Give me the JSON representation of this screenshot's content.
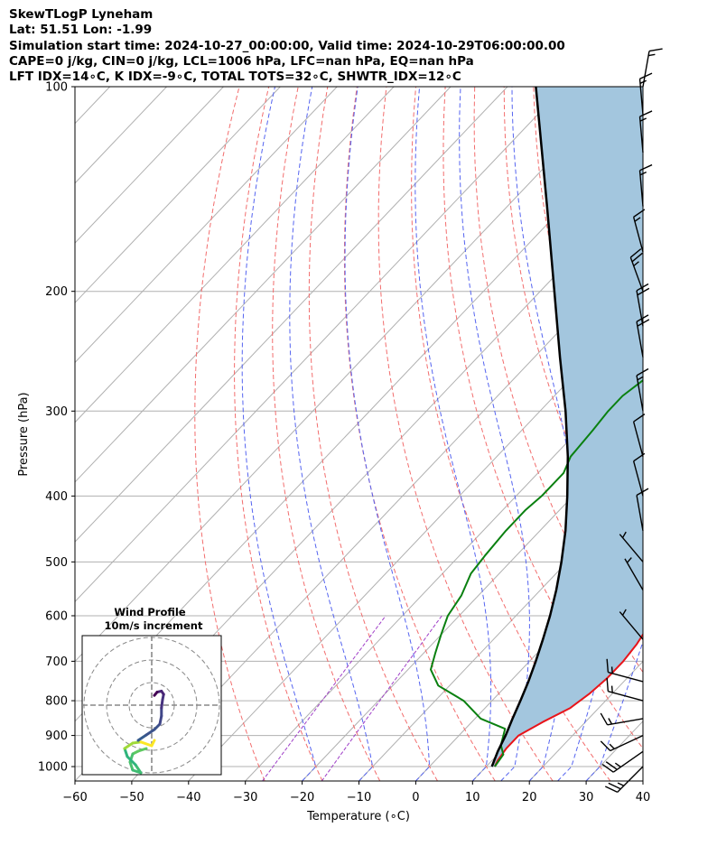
{
  "header": {
    "line1": "SkewTLogP Lyneham",
    "line2": "Lat: 51.51   Lon: -1.99",
    "line3": "Simulation start time: 2024-10-27_00:00:00, Valid time: 2024-10-29T06:00:00.00",
    "line4": "CAPE=0 j/kg, CIN=0 j/kg, LCL=1006 hPa, LFC=nan hPa, EQ=nan hPa",
    "line5": "LFT IDX=14∘C, K IDX=-9∘C, TOTAL TOTS=32∘C, SHWTR_IDX=12∘C"
  },
  "hodograph": {
    "title": "Wind Profile",
    "subtitle": "10m/s increment"
  },
  "colors": {
    "temperature": "#e8141a",
    "dewpoint": "#0a8010",
    "parcel": "#000000",
    "cape_fill": "#a3c6de",
    "dry_adiabat": "#f26d6d",
    "moist_adiabat": "#5564f0",
    "mixing_ratio": "#a040c8",
    "isotherm": "#b0b0b0"
  },
  "chart_data": {
    "type": "line",
    "subtype": "skew-T log-P",
    "xlabel": "Temperature (∘C)",
    "ylabel": "Pressure (hPa)",
    "xlim": [
      -60,
      40
    ],
    "ylim": [
      1050,
      100
    ],
    "yscale": "log",
    "xticks": [
      "−60",
      "−50",
      "−40",
      "−30",
      "−20",
      "−10",
      "0",
      "10",
      "20",
      "30",
      "40"
    ],
    "yticks": [
      "1000",
      "900",
      "800",
      "700",
      "600",
      "500",
      "400",
      "300",
      "200",
      "100"
    ],
    "grid": true,
    "series": [
      {
        "key": "temperature",
        "points": [
          [
            1000,
            11.5
          ],
          [
            980,
            11
          ],
          [
            940,
            10.5
          ],
          [
            900,
            10.5
          ],
          [
            860,
            12.5
          ],
          [
            820,
            15
          ],
          [
            780,
            16
          ],
          [
            740,
            16.5
          ],
          [
            700,
            16.5
          ],
          [
            660,
            16
          ],
          [
            620,
            15
          ],
          [
            580,
            13
          ],
          [
            540,
            11
          ],
          [
            500,
            8.5
          ],
          [
            460,
            6.5
          ],
          [
            420,
            4.5
          ],
          [
            380,
            2
          ],
          [
            350,
            -1
          ],
          [
            320,
            -4
          ],
          [
            290,
            -7
          ],
          [
            270,
            -10
          ],
          [
            250,
            -12
          ],
          [
            230,
            -12.5
          ],
          [
            210,
            -13
          ],
          [
            190,
            -12.5
          ],
          [
            170,
            -11.5
          ],
          [
            150,
            -10
          ],
          [
            140,
            -8.5
          ],
          [
            130,
            -6.5
          ],
          [
            115,
            -4
          ],
          [
            108,
            -2
          ],
          [
            100,
            0
          ]
        ]
      },
      {
        "key": "dewpoint",
        "points": [
          [
            1000,
            11.5
          ],
          [
            960,
            11
          ],
          [
            930,
            9
          ],
          [
            880,
            7
          ],
          [
            850,
            1
          ],
          [
            800,
            -5
          ],
          [
            760,
            -12
          ],
          [
            720,
            -16
          ],
          [
            680,
            -18
          ],
          [
            640,
            -20
          ],
          [
            600,
            -22
          ],
          [
            560,
            -23
          ],
          [
            520,
            -25
          ],
          [
            490,
            -25.5
          ],
          [
            450,
            -26
          ],
          [
            420,
            -26
          ],
          [
            400,
            -25.5
          ],
          [
            370,
            -25.5
          ],
          [
            350,
            -27
          ],
          [
            320,
            -27.5
          ],
          [
            300,
            -28
          ],
          [
            285,
            -28
          ],
          [
            270,
            -27
          ],
          [
            255,
            -29
          ],
          [
            240,
            -31.5
          ],
          [
            225,
            -32
          ],
          [
            210,
            -33
          ],
          [
            195,
            -34
          ],
          [
            185,
            -36
          ],
          [
            175,
            -38
          ],
          [
            165,
            -39.5
          ],
          [
            155,
            -41
          ],
          [
            140,
            -40.5
          ],
          [
            130,
            -40
          ],
          [
            120,
            -39.5
          ],
          [
            110,
            -38
          ],
          [
            100,
            -36
          ]
        ]
      },
      {
        "key": "parcel",
        "points": [
          [
            1000,
            11.0
          ],
          [
            950,
            9.5
          ],
          [
            900,
            8.2
          ],
          [
            850,
            6.6
          ],
          [
            800,
            5.0
          ],
          [
            750,
            3.2
          ],
          [
            700,
            1.1
          ],
          [
            650,
            -1.3
          ],
          [
            600,
            -4.0
          ],
          [
            550,
            -7.2
          ],
          [
            500,
            -11.0
          ],
          [
            450,
            -15.5
          ],
          [
            400,
            -21.0
          ],
          [
            350,
            -27.5
          ],
          [
            300,
            -35.5
          ],
          [
            250,
            -45.5
          ],
          [
            200,
            -57.5
          ],
          [
            150,
            -73.0
          ],
          [
            100,
            -95.0
          ]
        ]
      }
    ],
    "wind_barbs": [
      {
        "p": 1000,
        "dir": 225,
        "speed_kt": 25
      },
      {
        "p": 950,
        "dir": 235,
        "speed_kt": 25
      },
      {
        "p": 900,
        "dir": 245,
        "speed_kt": 15
      },
      {
        "p": 850,
        "dir": 260,
        "speed_kt": 15
      },
      {
        "p": 800,
        "dir": 285,
        "speed_kt": 15
      },
      {
        "p": 750,
        "dir": 285,
        "speed_kt": 15
      },
      {
        "p": 650,
        "dir": 320,
        "speed_kt": 5
      },
      {
        "p": 550,
        "dir": 330,
        "speed_kt": 5
      },
      {
        "p": 500,
        "dir": 320,
        "speed_kt": 5
      },
      {
        "p": 450,
        "dir": 350,
        "speed_kt": 10
      },
      {
        "p": 400,
        "dir": 345,
        "speed_kt": 10
      },
      {
        "p": 350,
        "dir": 345,
        "speed_kt": 10
      },
      {
        "p": 300,
        "dir": 350,
        "speed_kt": 15
      },
      {
        "p": 250,
        "dir": 350,
        "speed_kt": 20
      },
      {
        "p": 225,
        "dir": 350,
        "speed_kt": 20
      },
      {
        "p": 200,
        "dir": 340,
        "speed_kt": 25
      },
      {
        "p": 175,
        "dir": 345,
        "speed_kt": 15
      },
      {
        "p": 150,
        "dir": 355,
        "speed_kt": 15
      },
      {
        "p": 125,
        "dir": 355,
        "speed_kt": 15
      },
      {
        "p": 110,
        "dir": 355,
        "speed_kt": 15
      },
      {
        "p": 100,
        "dir": 10,
        "speed_kt": 15
      }
    ],
    "hodograph_points": [
      [
        -2.5,
        -6.5
      ],
      [
        -1.0,
        -5.5
      ],
      [
        0.5,
        -4.5
      ],
      [
        1.5,
        -3.5
      ],
      [
        1.8,
        -2.0
      ],
      [
        1.8,
        -0.5
      ],
      [
        2.0,
        1.0
      ],
      [
        2.2,
        2.0
      ],
      [
        1.8,
        2.6
      ],
      [
        1.0,
        2.4
      ],
      [
        0.5,
        1.8
      ]
    ],
    "hodograph_lowlevel": [
      [
        -1.0,
        -8.0
      ],
      [
        -2.5,
        -8.5
      ],
      [
        -3.5,
        -9.0
      ],
      [
        -4.0,
        -10.5
      ],
      [
        -3.5,
        -12.0
      ],
      [
        -2.0,
        -12.5
      ],
      [
        -3.0,
        -11.0
      ],
      [
        -4.5,
        -9.5
      ],
      [
        -5.0,
        -8.0
      ],
      [
        -3.5,
        -7.0
      ],
      [
        -2.0,
        -6.8
      ],
      [
        0,
        -7.5
      ],
      [
        0.5,
        -6.5
      ]
    ]
  }
}
